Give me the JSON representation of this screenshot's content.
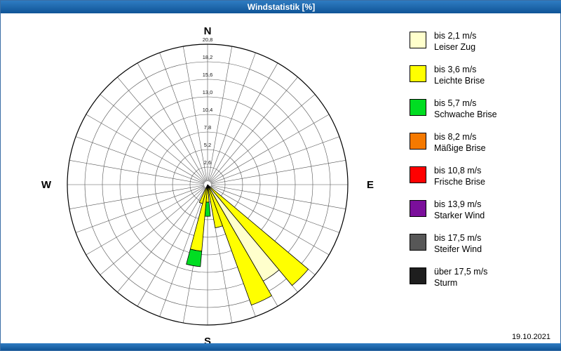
{
  "window": {
    "title": "Windstatistik [%]",
    "date": "19.10.2021"
  },
  "chart_data": {
    "type": "windrose",
    "title": "Windstatistik [%]",
    "units": "%",
    "compass": {
      "north": "N",
      "east": "E",
      "south": "S",
      "west": "W"
    },
    "sector_degrees": 10,
    "max": 20.8,
    "rings": [
      2.6,
      5.2,
      7.8,
      10.4,
      13.0,
      15.6,
      18.2,
      20.8
    ],
    "ring_labels": [
      "2,6",
      "5,2",
      "7,8",
      "10,4",
      "13,0",
      "15,6",
      "18,2",
      "20,8"
    ],
    "categories": {
      "leiser_zug": {
        "color": "#FFFFCC"
      },
      "leichte_brise": {
        "color": "#FFFF00"
      },
      "schwache_brise": {
        "color": "#00DD22"
      },
      "maessige_brise": {
        "color": "#F57900"
      },
      "frische_brise": {
        "color": "#FF0000"
      },
      "starker_wind": {
        "color": "#7B0F9B"
      },
      "steifer_wind": {
        "color": "#575757"
      },
      "sturm": {
        "color": "#1E1E1E"
      }
    },
    "petals": [
      {
        "angle": 135,
        "segments": [
          {
            "category": "leichte_brise",
            "from": 0,
            "to": 19.5
          }
        ]
      },
      {
        "angle": 145,
        "segments": [
          {
            "category": "leiser_zug",
            "from": 0,
            "to": 16.5
          }
        ]
      },
      {
        "angle": 155,
        "segments": [
          {
            "category": "leichte_brise",
            "from": 0,
            "to": 19.0
          }
        ]
      },
      {
        "angle": 165,
        "segments": [
          {
            "category": "leichte_brise",
            "from": 0,
            "to": 6.5
          }
        ]
      },
      {
        "angle": 180,
        "segments": [
          {
            "category": "leichte_brise",
            "from": 0,
            "to": 2.6
          },
          {
            "category": "schwache_brise",
            "from": 2.6,
            "to": 4.7
          }
        ]
      },
      {
        "angle": 190,
        "segments": [
          {
            "category": "leichte_brise",
            "from": 0,
            "to": 9.9
          },
          {
            "category": "schwache_brise",
            "from": 9.9,
            "to": 12.2
          }
        ]
      },
      {
        "angle": 200,
        "segments": [
          {
            "category": "leichte_brise",
            "from": 0,
            "to": 2.9
          }
        ]
      }
    ]
  },
  "legend": {
    "items": [
      {
        "key": "leiser_zug",
        "speed": "bis 2,1 m/s",
        "name": "Leiser Zug",
        "color": "#FFFFCC"
      },
      {
        "key": "leichte_brise",
        "speed": "bis 3,6 m/s",
        "name": "Leichte Brise",
        "color": "#FFFF00"
      },
      {
        "key": "schwache_brise",
        "speed": "bis 5,7 m/s",
        "name": "Schwache Brise",
        "color": "#00DD22"
      },
      {
        "key": "maessige_brise",
        "speed": "bis 8,2 m/s",
        "name": "Mäßige Brise",
        "color": "#F57900"
      },
      {
        "key": "frische_brise",
        "speed": "bis 10,8 m/s",
        "name": "Frische Brise",
        "color": "#FF0000"
      },
      {
        "key": "starker_wind",
        "speed": "bis 13,9 m/s",
        "name": "Starker Wind",
        "color": "#7B0F9B"
      },
      {
        "key": "steifer_wind",
        "speed": "bis 17,5 m/s",
        "name": "Steifer Wind",
        "color": "#575757"
      },
      {
        "key": "sturm",
        "speed": "über 17,5 m/s",
        "name": "Sturm",
        "color": "#1E1E1E"
      }
    ]
  }
}
